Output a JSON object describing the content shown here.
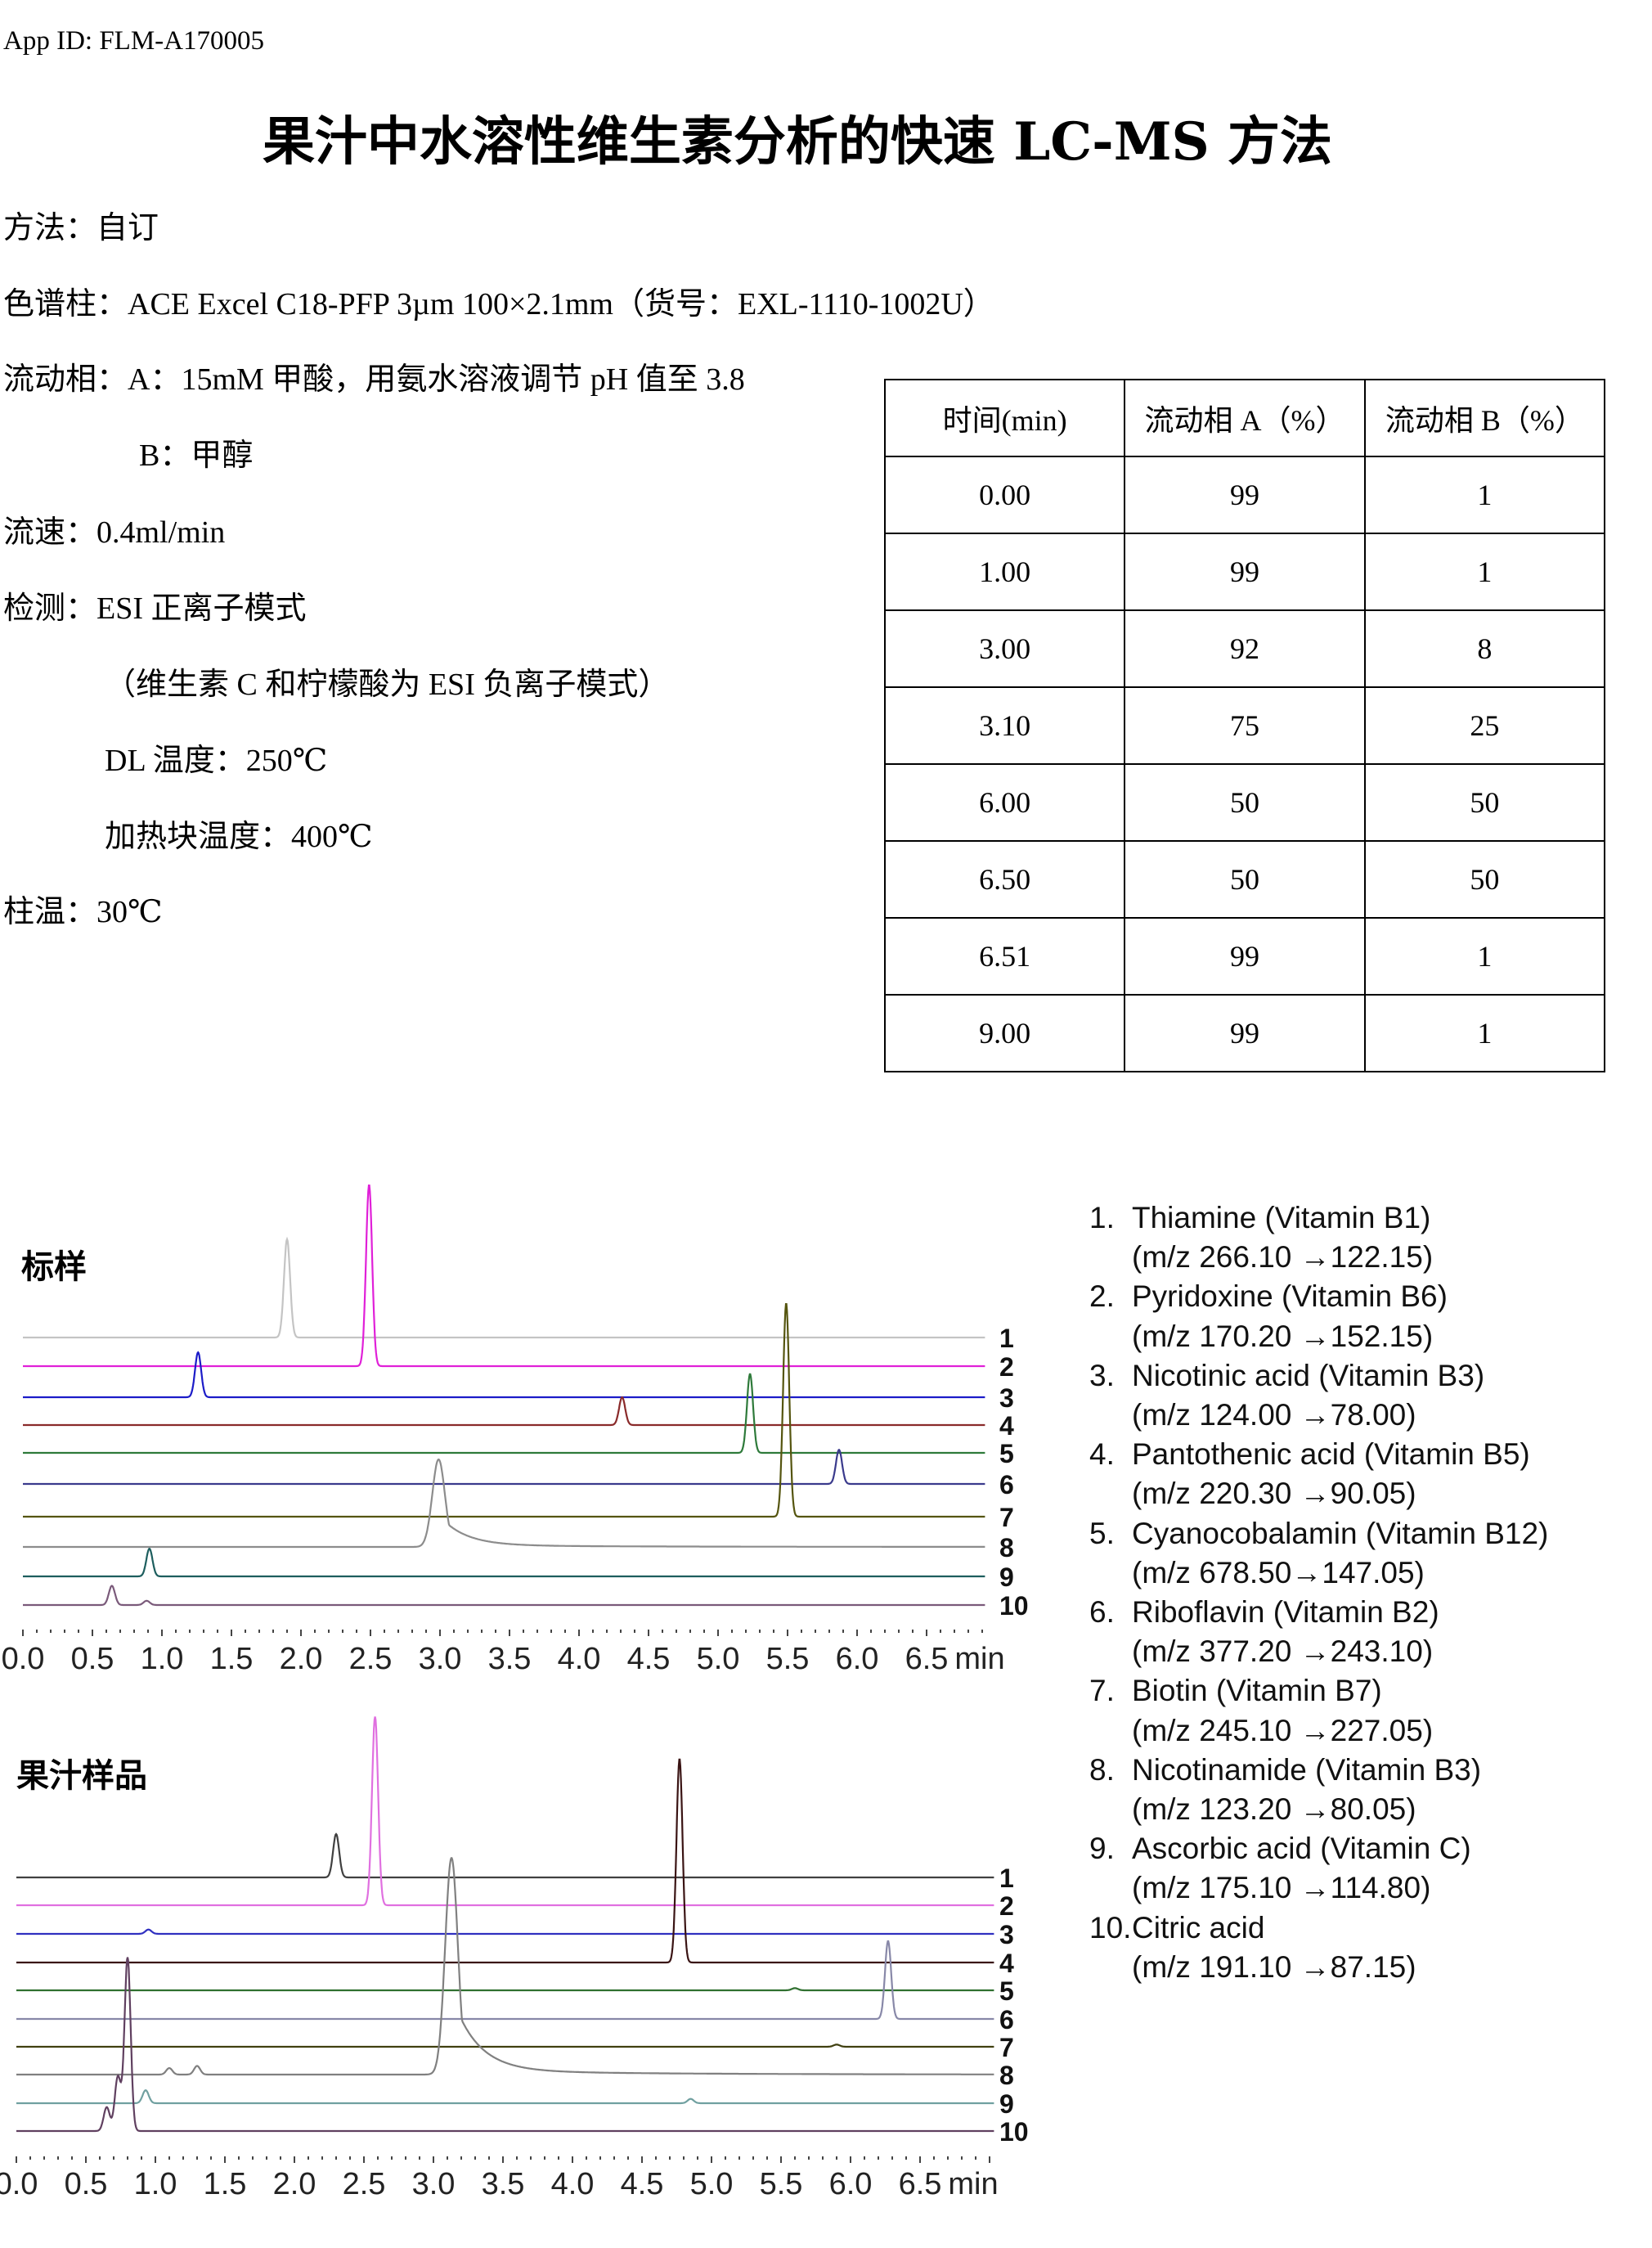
{
  "app_id": "App ID: FLM-A170005",
  "title": "果汁中水溶性维生素分析的快速 LC-MS 方法",
  "conditions": {
    "method": "方法：自订",
    "column": "色谱柱：ACE Excel C18-PFP 3µm 100×2.1mm（货号：EXL-1110-1002U）",
    "mobile_phase_a": "流动相：A：15mM 甲酸，用氨水溶液调节 pH 值至 3.8",
    "mobile_phase_b": "B：甲醇",
    "flow": "流速：0.4ml/min",
    "detection": "检测：ESI 正离子模式",
    "detection_note": "（维生素 C 和柠檬酸为 ESI 负离子模式）",
    "dl_temp": "DL 温度：250℃",
    "block_temp": "加热块温度：400℃",
    "column_temp": "柱温：30℃"
  },
  "gradient_table": {
    "headers": [
      "时间(min)",
      "流动相 A（%）",
      "流动相 B（%）"
    ],
    "rows": [
      [
        "0.00",
        "99",
        "1"
      ],
      [
        "1.00",
        "99",
        "1"
      ],
      [
        "3.00",
        "92",
        "8"
      ],
      [
        "3.10",
        "75",
        "25"
      ],
      [
        "6.00",
        "50",
        "50"
      ],
      [
        "6.50",
        "50",
        "50"
      ],
      [
        "6.51",
        "99",
        "1"
      ],
      [
        "9.00",
        "99",
        "1"
      ]
    ]
  },
  "legend": [
    {
      "num": "1.",
      "name": "Thiamine (Vitamin B1)",
      "mz": "(m/z 266.10 →122.15)"
    },
    {
      "num": "2.",
      "name": "Pyridoxine (Vitamin B6)",
      "mz": "(m/z 170.20 →152.15)"
    },
    {
      "num": "3.",
      "name": "Nicotinic acid (Vitamin B3)",
      "mz": "(m/z 124.00 →78.00)"
    },
    {
      "num": "4.",
      "name": "Pantothenic acid (Vitamin B5)",
      "mz": "(m/z 220.30 →90.05)"
    },
    {
      "num": "5.",
      "name": "Cyanocobalamin  (Vitamin B12)",
      "mz": "(m/z 678.50→147.05)"
    },
    {
      "num": "6.",
      "name": "Riboflavin (Vitamin B2)",
      "mz": "(m/z 377.20 →243.10)"
    },
    {
      "num": "7.",
      "name": "Biotin (Vitamin B7)",
      "mz": "(m/z 245.10 →227.05)"
    },
    {
      "num": "8.",
      "name": "Nicotinamide (Vitamin B3)",
      "mz": "(m/z 123.20 →80.05)"
    },
    {
      "num": "9.",
      "name": "Ascorbic acid (Vitamin C)",
      "mz": "(m/z 175.10 →114.80)"
    },
    {
      "num": "10.",
      "name": "Citric acid",
      "mz": "(m/z 191.10 →87.15)"
    }
  ],
  "chart_data": [
    {
      "type": "line",
      "title": "标样",
      "xlabel": "min",
      "x_ticks": [
        "0.0",
        "0.5",
        "1.0",
        "1.5",
        "2.0",
        "2.5",
        "3.0",
        "3.5",
        "4.0",
        "4.5",
        "5.0",
        "5.5",
        "6.0",
        "6.5"
      ],
      "xlim": [
        0,
        7.0
      ],
      "grid": false,
      "series": [
        {
          "name": "1",
          "color": "#c4c4c4",
          "peaks": [
            {
              "rt": 1.9,
              "rel_height": 0.46
            }
          ]
        },
        {
          "name": "2",
          "color": "#e020d8",
          "peaks": [
            {
              "rt": 2.49,
              "rel_height": 0.85
            }
          ]
        },
        {
          "name": "3",
          "color": "#1c1cc8",
          "peaks": [
            {
              "rt": 1.26,
              "rel_height": 0.21
            }
          ]
        },
        {
          "name": "4",
          "color": "#8a2a2a",
          "peaks": [
            {
              "rt": 4.31,
              "rel_height": 0.13
            }
          ]
        },
        {
          "name": "5",
          "color": "#2e7a3a",
          "peaks": [
            {
              "rt": 5.23,
              "rel_height": 0.37
            }
          ]
        },
        {
          "name": "6",
          "color": "#3a3a8c",
          "peaks": [
            {
              "rt": 5.87,
              "rel_height": 0.16
            }
          ]
        },
        {
          "name": "7",
          "color": "#55550f",
          "peaks": [
            {
              "rt": 5.49,
              "rel_height": 1.0
            }
          ]
        },
        {
          "name": "8",
          "color": "#8c8c8c",
          "peaks": [
            {
              "rt": 2.99,
              "rel_height": 0.41,
              "tailing": true
            }
          ]
        },
        {
          "name": "9",
          "color": "#1d5e5e",
          "peaks": [
            {
              "rt": 0.91,
              "rel_height": 0.13
            }
          ]
        },
        {
          "name": "10",
          "color": "#7a5a7a",
          "peaks": [
            {
              "rt": 0.64,
              "rel_height": 0.09
            },
            {
              "rt": 0.89,
              "rel_height": 0.02
            }
          ]
        }
      ]
    },
    {
      "type": "line",
      "title": "果汁样品",
      "xlabel": "min",
      "x_ticks": [
        "0.0",
        "0.5",
        "1.0",
        "1.5",
        "2.0",
        "2.5",
        "3.0",
        "3.5",
        "4.0",
        "4.5",
        "5.0",
        "5.5",
        "6.0",
        "6.5"
      ],
      "xlim": [
        0,
        7.0
      ],
      "grid": false,
      "series": [
        {
          "name": "1",
          "color": "#404040",
          "peaks": [
            {
              "rt": 2.3,
              "rel_height": 0.2
            }
          ]
        },
        {
          "name": "2",
          "color": "#e070e0",
          "peaks": [
            {
              "rt": 2.58,
              "rel_height": 0.87
            }
          ]
        },
        {
          "name": "3",
          "color": "#3030c0",
          "peaks": [
            {
              "rt": 0.95,
              "rel_height": 0.02
            }
          ]
        },
        {
          "name": "4",
          "color": "#3a1414",
          "peaks": [
            {
              "rt": 4.77,
              "rel_height": 0.94
            }
          ]
        },
        {
          "name": "5",
          "color": "#307030",
          "peaks": [
            {
              "rt": 5.6,
              "rel_height": 0.01
            }
          ]
        },
        {
          "name": "6",
          "color": "#8888a8",
          "peaks": [
            {
              "rt": 6.27,
              "rel_height": 0.36
            }
          ]
        },
        {
          "name": "7",
          "color": "#404010",
          "peaks": [
            {
              "rt": 5.9,
              "rel_height": 0.01
            }
          ]
        },
        {
          "name": "8",
          "color": "#808080",
          "peaks": [
            {
              "rt": 1.1,
              "rel_height": 0.03
            },
            {
              "rt": 1.3,
              "rel_height": 0.04
            },
            {
              "rt": 3.13,
              "rel_height": 1.0,
              "tailing": true
            }
          ]
        },
        {
          "name": "9",
          "color": "#70a0a0",
          "peaks": [
            {
              "rt": 0.93,
              "rel_height": 0.06
            },
            {
              "rt": 4.85,
              "rel_height": 0.02
            }
          ]
        },
        {
          "name": "10",
          "color": "#604060",
          "peaks": [
            {
              "rt": 0.65,
              "rel_height": 0.11
            },
            {
              "rt": 0.73,
              "rel_height": 0.25
            },
            {
              "rt": 0.8,
              "rel_height": 0.8
            }
          ]
        }
      ]
    }
  ]
}
